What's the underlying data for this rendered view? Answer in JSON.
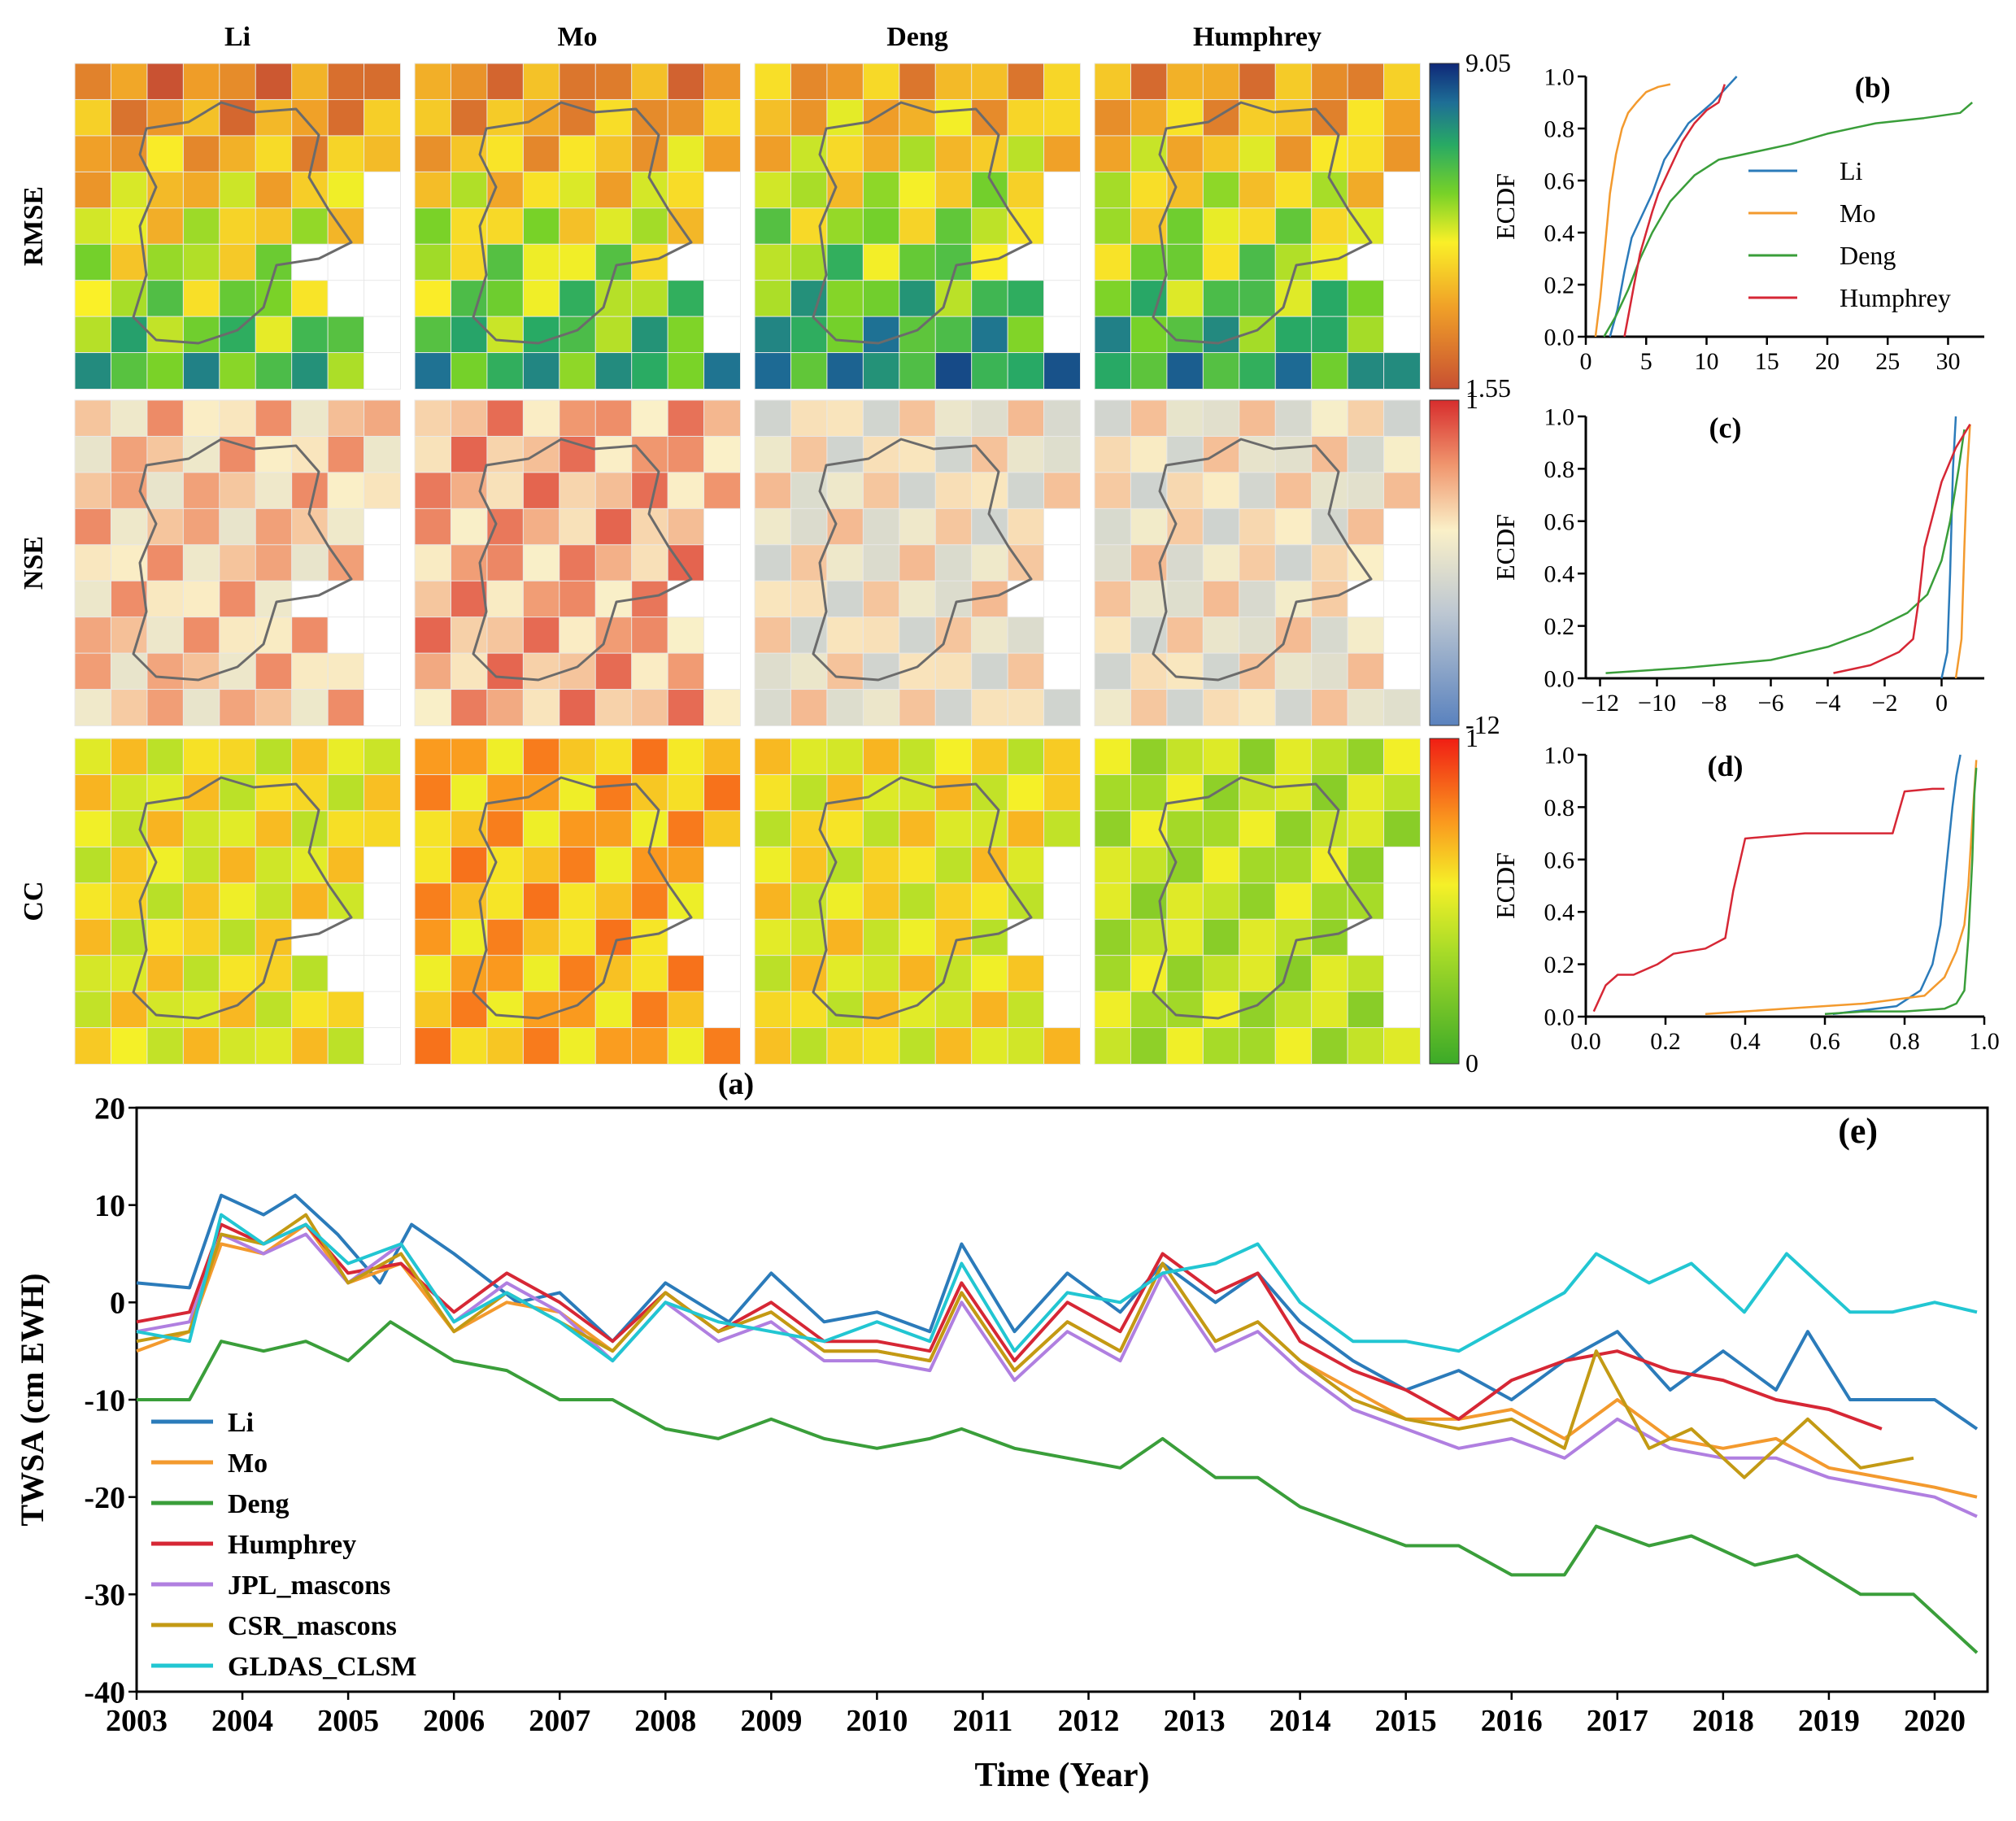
{
  "colors": {
    "Li": "#2b7bba",
    "Mo": "#f39a2e",
    "Deng": "#3a9e3a",
    "Humphrey": "#d62735",
    "JPL_mascons": "#b07fe0",
    "CSR_mascons": "#c39a14",
    "GLDAS_CLSM": "#22c6d2"
  },
  "panel_a": {
    "label": "(a)",
    "models": [
      "Li",
      "Mo",
      "Deng",
      "Humphrey"
    ],
    "metrics": [
      "RMSE",
      "NSE",
      "CC"
    ],
    "colorbars": [
      {
        "metric": "RMSE",
        "max_label": "9.05",
        "min_label": "1.55"
      },
      {
        "metric": "NSE",
        "max_label": "1",
        "min_label": "-12"
      },
      {
        "metric": "CC",
        "max_label": "1",
        "min_label": "0"
      }
    ]
  },
  "chart_data": [
    {
      "type": "line",
      "panel": "(b)",
      "xlabel": "",
      "ylabel": "ECDF",
      "xlim": [
        0,
        33
      ],
      "ylim": [
        0,
        1
      ],
      "xticks": [
        "0",
        "5",
        "10",
        "15",
        "20",
        "25",
        "30"
      ],
      "yticks": [
        "0.0",
        "0.2",
        "0.4",
        "0.6",
        "0.8",
        "1.0"
      ],
      "legend": "right",
      "series": [
        {
          "name": "Li",
          "x": [
            2.0,
            2.6,
            3.2,
            3.8,
            4.5,
            5.5,
            6.5,
            7.5,
            8.5,
            9.5,
            10.5,
            11.5,
            12.5
          ],
          "y": [
            0.0,
            0.1,
            0.25,
            0.38,
            0.45,
            0.55,
            0.68,
            0.75,
            0.82,
            0.86,
            0.9,
            0.95,
            1.0
          ]
        },
        {
          "name": "Mo",
          "x": [
            0.8,
            1.2,
            1.6,
            2.0,
            2.5,
            3.0,
            3.5,
            4.2,
            5.0,
            6.0,
            7.0
          ],
          "y": [
            0.0,
            0.15,
            0.35,
            0.55,
            0.7,
            0.8,
            0.86,
            0.9,
            0.94,
            0.96,
            0.97
          ]
        },
        {
          "name": "Deng",
          "x": [
            1.5,
            2.5,
            3.5,
            4.5,
            5.5,
            7.0,
            9.0,
            11.0,
            13.0,
            15.0,
            17.0,
            20.0,
            24.0,
            28.0,
            31.0,
            32.0
          ],
          "y": [
            0.0,
            0.08,
            0.18,
            0.3,
            0.4,
            0.52,
            0.62,
            0.68,
            0.7,
            0.72,
            0.74,
            0.78,
            0.82,
            0.84,
            0.86,
            0.9
          ]
        },
        {
          "name": "Humphrey",
          "x": [
            3.2,
            3.6,
            4.0,
            4.5,
            5.0,
            5.5,
            6.0,
            7.0,
            8.0,
            9.0,
            10.0,
            11.0,
            11.5
          ],
          "y": [
            0.0,
            0.1,
            0.2,
            0.32,
            0.4,
            0.48,
            0.55,
            0.65,
            0.75,
            0.82,
            0.87,
            0.9,
            0.97
          ]
        }
      ]
    },
    {
      "type": "line",
      "panel": "(c)",
      "xlabel": "",
      "ylabel": "ECDF",
      "xlim": [
        -12.5,
        1.5
      ],
      "ylim": [
        0,
        1
      ],
      "xticks": [
        "−12",
        "−10",
        "−8",
        "−6",
        "−4",
        "−2",
        "0"
      ],
      "yticks": [
        "0.0",
        "0.2",
        "0.4",
        "0.6",
        "0.8",
        "1.0"
      ],
      "series": [
        {
          "name": "Li",
          "x": [
            0.0,
            0.2,
            0.3,
            0.4,
            0.5
          ],
          "y": [
            0.0,
            0.1,
            0.4,
            0.8,
            1.0
          ]
        },
        {
          "name": "Mo",
          "x": [
            0.5,
            0.7,
            0.8,
            0.9,
            1.0
          ],
          "y": [
            0.0,
            0.15,
            0.5,
            0.8,
            0.97
          ]
        },
        {
          "name": "Deng",
          "x": [
            -11.8,
            -9.0,
            -6.0,
            -4.0,
            -2.5,
            -1.2,
            -0.5,
            0.0,
            0.3,
            0.6,
            0.8
          ],
          "y": [
            0.02,
            0.04,
            0.07,
            0.12,
            0.18,
            0.25,
            0.32,
            0.45,
            0.6,
            0.8,
            0.95
          ]
        },
        {
          "name": "Humphrey",
          "x": [
            -3.8,
            -2.5,
            -1.5,
            -1.0,
            -0.8,
            -0.6,
            0.0,
            0.5,
            1.0
          ],
          "y": [
            0.02,
            0.05,
            0.1,
            0.15,
            0.3,
            0.5,
            0.75,
            0.88,
            0.97
          ]
        }
      ]
    },
    {
      "type": "line",
      "panel": "(d)",
      "xlabel": "",
      "ylabel": "ECDF",
      "xlim": [
        0,
        1
      ],
      "ylim": [
        0,
        1
      ],
      "xticks": [
        "0.0",
        "0.2",
        "0.4",
        "0.6",
        "0.8",
        "1.0"
      ],
      "yticks": [
        "0.0",
        "0.2",
        "0.4",
        "0.6",
        "0.8",
        "1.0"
      ],
      "series": [
        {
          "name": "Li",
          "x": [
            0.62,
            0.78,
            0.84,
            0.87,
            0.89,
            0.9,
            0.91,
            0.92,
            0.93,
            0.94
          ],
          "y": [
            0.01,
            0.04,
            0.1,
            0.2,
            0.35,
            0.5,
            0.65,
            0.8,
            0.92,
            1.0
          ]
        },
        {
          "name": "Mo",
          "x": [
            0.3,
            0.5,
            0.7,
            0.85,
            0.9,
            0.93,
            0.95,
            0.96,
            0.97,
            0.98
          ],
          "y": [
            0.01,
            0.03,
            0.05,
            0.08,
            0.15,
            0.25,
            0.35,
            0.5,
            0.75,
            0.98
          ]
        },
        {
          "name": "Deng",
          "x": [
            0.6,
            0.7,
            0.8,
            0.9,
            0.93,
            0.95,
            0.96,
            0.97,
            0.975,
            0.98
          ],
          "y": [
            0.01,
            0.02,
            0.02,
            0.03,
            0.05,
            0.1,
            0.3,
            0.6,
            0.85,
            0.95
          ]
        },
        {
          "name": "Humphrey",
          "x": [
            0.02,
            0.05,
            0.08,
            0.12,
            0.18,
            0.22,
            0.3,
            0.35,
            0.37,
            0.4,
            0.55,
            0.7,
            0.77,
            0.8,
            0.87,
            0.9
          ],
          "y": [
            0.02,
            0.12,
            0.16,
            0.16,
            0.2,
            0.24,
            0.26,
            0.3,
            0.48,
            0.68,
            0.7,
            0.7,
            0.7,
            0.86,
            0.87,
            0.87
          ]
        }
      ]
    },
    {
      "type": "line",
      "panel": "(e)",
      "xlabel": "Time (Year)",
      "ylabel": "TWSA (cm EWH)",
      "xlim": [
        2003,
        2020.5
      ],
      "ylim": [
        -40,
        20
      ],
      "xticks": [
        "2003",
        "2004",
        "2005",
        "2006",
        "2007",
        "2008",
        "2009",
        "2010",
        "2011",
        "2012",
        "2013",
        "2014",
        "2015",
        "2016",
        "2017",
        "2018",
        "2019",
        "2020"
      ],
      "yticks": [
        "20",
        "10",
        "0",
        "-10",
        "-20",
        "-30",
        "-40"
      ],
      "legend": "lower-left",
      "series": [
        {
          "name": "Li",
          "x": [
            2003,
            2003.5,
            2003.8,
            2004.2,
            2004.5,
            2004.9,
            2005.3,
            2005.6,
            2006,
            2006.6,
            2007,
            2007.5,
            2008,
            2008.6,
            2009,
            2009.5,
            2010,
            2010.5,
            2010.8,
            2011.3,
            2011.8,
            2012.3,
            2012.7,
            2013.2,
            2013.6,
            2014,
            2014.5,
            2015,
            2015.5,
            2016,
            2016.5,
            2017,
            2017.5,
            2018,
            2018.5,
            2018.8,
            2019.2,
            2019.5,
            2020,
            2020.4
          ],
          "y": [
            2,
            1.5,
            11,
            9,
            11,
            7,
            2,
            8,
            5,
            0,
            1,
            -4,
            2,
            -2,
            3,
            -2,
            -1,
            -3,
            6,
            -3,
            3,
            -1,
            4,
            0,
            3,
            -2,
            -6,
            -9,
            -7,
            -10,
            -6,
            -3,
            -9,
            -5,
            -9,
            -3,
            -10,
            -10,
            -10,
            -13
          ]
        },
        {
          "name": "Mo",
          "x": [
            2003,
            2003.5,
            2003.8,
            2004.2,
            2004.6,
            2005,
            2005.5,
            2006,
            2006.5,
            2007,
            2007.5,
            2008,
            2008.5,
            2009,
            2009.5,
            2010,
            2010.5,
            2010.8,
            2011.3,
            2011.8,
            2012.3,
            2012.7,
            2013.2,
            2013.6,
            2014,
            2014.5,
            2015,
            2015.5,
            2016,
            2016.5,
            2017,
            2017.5,
            2018,
            2018.5,
            2019,
            2019.5,
            2020,
            2020.4
          ],
          "y": [
            -5,
            -3,
            6,
            5,
            8,
            2,
            4,
            -3,
            0,
            -1,
            -5,
            1,
            -3,
            -1,
            -5,
            -5,
            -6,
            1,
            -7,
            -2,
            -5,
            4,
            -4,
            -2,
            -6,
            -9,
            -12,
            -12,
            -11,
            -14,
            -10,
            -14,
            -15,
            -14,
            -17,
            -18,
            -19,
            -20
          ]
        },
        {
          "name": "Deng",
          "x": [
            2003,
            2003.5,
            2003.8,
            2004.2,
            2004.6,
            2005,
            2005.4,
            2006,
            2006.5,
            2007,
            2007.5,
            2008,
            2008.5,
            2009,
            2009.5,
            2010,
            2010.5,
            2010.8,
            2011.3,
            2011.8,
            2012.3,
            2012.7,
            2013.2,
            2013.6,
            2014,
            2014.5,
            2015,
            2015.5,
            2016,
            2016.5,
            2016.8,
            2017.3,
            2017.7,
            2018.3,
            2018.7,
            2019.3,
            2019.8,
            2020.4
          ],
          "y": [
            -10,
            -10,
            -4,
            -5,
            -4,
            -6,
            -2,
            -6,
            -7,
            -10,
            -10,
            -13,
            -14,
            -12,
            -14,
            -15,
            -14,
            -13,
            -15,
            -16,
            -17,
            -14,
            -18,
            -18,
            -21,
            -23,
            -25,
            -25,
            -28,
            -28,
            -23,
            -25,
            -24,
            -27,
            -26,
            -30,
            -30,
            -36
          ]
        },
        {
          "name": "Humphrey",
          "x": [
            2003,
            2003.5,
            2003.8,
            2004.2,
            2004.6,
            2005,
            2005.5,
            2006,
            2006.5,
            2007,
            2007.5,
            2008,
            2008.5,
            2009,
            2009.5,
            2010,
            2010.5,
            2010.8,
            2011.3,
            2011.8,
            2012.3,
            2012.7,
            2013.2,
            2013.6,
            2014,
            2014.5,
            2015,
            2015.5,
            2016,
            2016.5,
            2017,
            2017.5,
            2018,
            2018.5,
            2019,
            2019.5
          ],
          "y": [
            -2,
            -1,
            8,
            6,
            8,
            3,
            4,
            -1,
            3,
            0,
            -4,
            1,
            -3,
            0,
            -4,
            -4,
            -5,
            2,
            -6,
            0,
            -3,
            5,
            1,
            3,
            -4,
            -7,
            -9,
            -12,
            -8,
            -6,
            -5,
            -7,
            -8,
            -10,
            -11,
            -13
          ]
        },
        {
          "name": "JPL_mascons",
          "x": [
            2003,
            2003.5,
            2003.8,
            2004.2,
            2004.6,
            2005,
            2005.5,
            2006,
            2006.5,
            2007,
            2007.5,
            2008,
            2008.5,
            2009,
            2009.5,
            2010,
            2010.5,
            2010.8,
            2011.3,
            2011.8,
            2012.3,
            2012.7,
            2013.2,
            2013.6,
            2014,
            2014.5,
            2015,
            2015.5,
            2016,
            2016.5,
            2017,
            2017.5,
            2018,
            2018.5,
            2019,
            2019.5,
            2020,
            2020.4
          ],
          "y": [
            -3,
            -2,
            7,
            5,
            7,
            2,
            6,
            -2,
            2,
            -1,
            -6,
            0,
            -4,
            -2,
            -6,
            -6,
            -7,
            0,
            -8,
            -3,
            -6,
            3,
            -5,
            -3,
            -7,
            -11,
            -13,
            -15,
            -14,
            -16,
            -12,
            -15,
            -16,
            -16,
            -18,
            -19,
            -20,
            -22
          ]
        },
        {
          "name": "CSR_mascons",
          "x": [
            2003,
            2003.5,
            2003.8,
            2004.2,
            2004.6,
            2005,
            2005.5,
            2006,
            2006.5,
            2007,
            2007.5,
            2008,
            2008.5,
            2009,
            2009.5,
            2010,
            2010.5,
            2010.8,
            2011.3,
            2011.8,
            2012.3,
            2012.7,
            2013.2,
            2013.6,
            2014,
            2014.5,
            2015,
            2015.5,
            2016,
            2016.5,
            2016.8,
            2017.3,
            2017.7,
            2018.2,
            2018.8,
            2019.3,
            2019.8
          ],
          "y": [
            -4,
            -3,
            7,
            6,
            9,
            2,
            5,
            -3,
            1,
            -2,
            -5,
            1,
            -3,
            -1,
            -5,
            -5,
            -6,
            1,
            -7,
            -2,
            -5,
            4,
            -4,
            -2,
            -6,
            -10,
            -12,
            -13,
            -12,
            -15,
            -5,
            -15,
            -13,
            -18,
            -12,
            -17,
            -16
          ]
        },
        {
          "name": "GLDAS_CLSM",
          "x": [
            2003,
            2003.5,
            2003.8,
            2004.2,
            2004.6,
            2005,
            2005.5,
            2006,
            2006.5,
            2007,
            2007.5,
            2008,
            2008.5,
            2009,
            2009.5,
            2010,
            2010.5,
            2010.8,
            2011.3,
            2011.8,
            2012.3,
            2012.7,
            2013.2,
            2013.6,
            2014,
            2014.5,
            2015,
            2015.5,
            2016,
            2016.5,
            2016.8,
            2017.3,
            2017.7,
            2018.2,
            2018.6,
            2019.2,
            2019.6,
            2020,
            2020.4
          ],
          "y": [
            -3,
            -4,
            9,
            6,
            8,
            4,
            6,
            -2,
            1,
            -2,
            -6,
            0,
            -2,
            -3,
            -4,
            -2,
            -4,
            4,
            -5,
            1,
            0,
            3,
            4,
            6,
            0,
            -4,
            -4,
            -5,
            -2,
            1,
            5,
            2,
            4,
            -1,
            5,
            -1,
            -1,
            0,
            -1
          ]
        }
      ]
    }
  ]
}
